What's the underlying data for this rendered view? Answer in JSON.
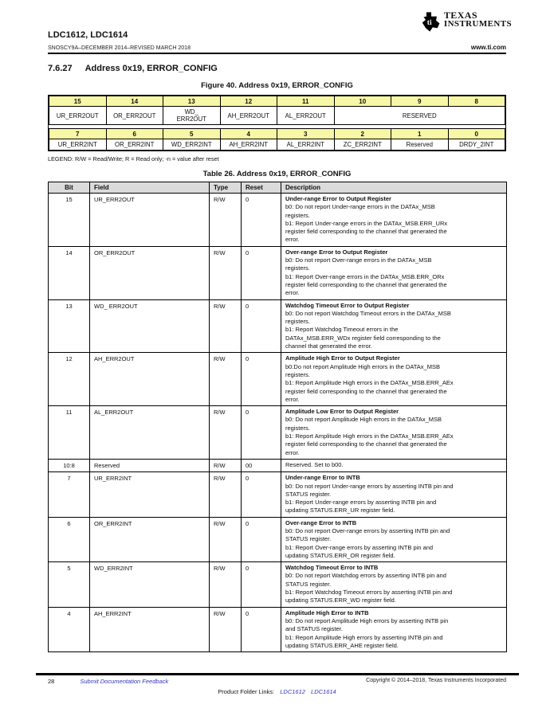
{
  "header": {
    "part_numbers": "LDC1612, LDC1614",
    "doc_line": "SNOSCY9A–DECEMBER 2014–REVISED MARCH 2018",
    "website": "www.ti.com",
    "logo_line1": "TEXAS",
    "logo_line2": "INSTRUMENTS"
  },
  "section": {
    "number": "7.6.27",
    "title": "Address 0x19, ERROR_CONFIG"
  },
  "figure": {
    "caption": "Figure 40.  Address 0x19, ERROR_CONFIG",
    "rows": [
      {
        "bits": [
          "15",
          "14",
          "13",
          "12",
          "11",
          "10",
          "9",
          "8"
        ],
        "fields": [
          {
            "label": "UR_ERR2OUT",
            "span": 1
          },
          {
            "label": "OR_ERR2OUT",
            "span": 1
          },
          {
            "label": "WD_\nERR2OUT",
            "span": 1
          },
          {
            "label": "AH_ERR2OUT",
            "span": 1
          },
          {
            "label": "AL_ERR2OUT",
            "span": 1
          },
          {
            "label": "RESERVED",
            "span": 3
          }
        ]
      },
      {
        "bits": [
          "7",
          "6",
          "5",
          "4",
          "3",
          "2",
          "1",
          "0"
        ],
        "fields": [
          {
            "label": "UR_ERR2INT",
            "span": 1
          },
          {
            "label": "OR_ERR2INT",
            "span": 1
          },
          {
            "label": "WD_ERR2INT",
            "span": 1
          },
          {
            "label": "AH_ERR2INT",
            "span": 1
          },
          {
            "label": "AL_ERR2INT",
            "span": 1
          },
          {
            "label": "ZC_ERR2INT",
            "span": 1
          },
          {
            "label": "Reserved",
            "span": 1
          },
          {
            "label": "DRDY_2INT",
            "span": 1
          }
        ]
      }
    ]
  },
  "legend": "LEGEND: R/W = Read/Write; R = Read only; -n = value after reset",
  "table": {
    "caption": "Table 26. Address 0x19, ERROR_CONFIG",
    "columns": [
      "Bit",
      "Field",
      "Type",
      "Reset",
      "Description"
    ],
    "rows": [
      {
        "bit": "15",
        "field": "UR_ERR2OUT",
        "type": "R/W",
        "reset": "0",
        "desc_title": "Under-range Error to Output Register",
        "desc_body": "b0: Do not report Under-range errors in the DATAx_MSB\nregisters.\nb1: Report Under-range errors in the DATAx_MSB.ERR_URx\nregister field corresponding to the channel that generated the\nerror."
      },
      {
        "bit": "14",
        "field": "OR_ERR2OUT",
        "type": "R/W",
        "reset": "0",
        "desc_title": "Over-range Error to Output Register",
        "desc_body": "b0: Do not report Over-range errors in the DATAx_MSB\nregisters.\nb1: Report Over-range errors in the DATAx_MSB.ERR_ORx\nregister field corresponding to the channel that generated the\nerror."
      },
      {
        "bit": "13",
        "field": "WD_ ERR2OUT",
        "type": "R/W",
        "reset": "0",
        "desc_title": "Watchdog Timeout Error to Output Register",
        "desc_body": "b0: Do not report Watchdog Timeout errors in the DATAx_MSB\nregisters.\nb1: Report Watchdog Timeout errors in the\nDATAx_MSB.ERR_WDx register field corresponding to the\nchannel that generated the error."
      },
      {
        "bit": "12",
        "field": "AH_ERR2OUT",
        "type": "R/W",
        "reset": "0",
        "desc_title": "Amplitude High Error to Output Register",
        "desc_body": "b0:Do not report Amplitude High errors in the DATAx_MSB\nregisters.\nb1: Report Amplitude High errors in the DATAx_MSB.ERR_AEx\nregister field corresponding to the channel that generated the\nerror."
      },
      {
        "bit": "11",
        "field": "AL_ERR2OUT",
        "type": "R/W",
        "reset": "0",
        "desc_title": "Amplitude Low Error to Output Register",
        "desc_body": "b0: Do not report Amplitude High errors in the DATAx_MSB\nregisters.\nb1: Report Amplitude High errors in the DATAx_MSB.ERR_AEx\nregister field corresponding to the channel that generated the\nerror."
      },
      {
        "bit": "10:8",
        "field": "Reserved",
        "type": "R/W",
        "reset": "00",
        "desc_title": "",
        "desc_body": "Reserved. Set to b00."
      },
      {
        "bit": "7",
        "field": "UR_ERR2INT",
        "type": "R/W",
        "reset": "0",
        "desc_title": "Under-range Error to INTB",
        "desc_body": "b0: Do not report Under-range errors by asserting INTB pin and\nSTATUS register.\nb1: Report Under-range errors by asserting INTB pin and\nupdating STATUS.ERR_UR register field."
      },
      {
        "bit": "6",
        "field": "OR_ERR2INT",
        "type": "R/W",
        "reset": "0",
        "desc_title": "Over-range Error to INTB",
        "desc_body": "b0: Do not report Over-range errors by asserting INTB pin and\nSTATUS register.\nb1: Report Over-range errors by asserting INTB pin and\nupdating STATUS.ERR_OR register field."
      },
      {
        "bit": "5",
        "field": "WD_ERR2INT",
        "type": "R/W",
        "reset": "0",
        "desc_title": "Watchdog Timeout Error to INTB",
        "desc_body": "b0: Do not report Watchdog errors by asserting INTB pin and\nSTATUS register.\nb1: Report Watchdog Timeout errors by asserting INTB pin and\nupdating STATUS.ERR_WD register field."
      },
      {
        "bit": "4",
        "field": "AH_ERR2INT",
        "type": "R/W",
        "reset": "0",
        "desc_title": "Amplitude High Error to INTB",
        "desc_body": "b0: Do not report Amplitude High errors by asserting INTB pin\nand STATUS register.\nb1: Report Amplitude High errors by asserting INTB pin and\nupdating STATUS.ERR_AHE register field."
      }
    ]
  },
  "footer": {
    "page_number": "28",
    "feedback": "Submit Documentation Feedback",
    "copyright": "Copyright © 2014–2018, Texas Instruments Incorporated",
    "product_links_label": "Product Folder Links:",
    "links": [
      "LDC1612",
      "LDC1614"
    ]
  },
  "colors": {
    "register_bits_background": "#f7f7a5",
    "table_header_background": "#dbdbdb",
    "link_blue": "#3535bb"
  }
}
